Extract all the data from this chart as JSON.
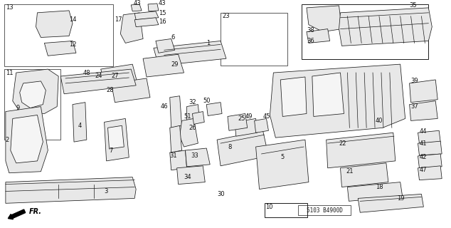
{
  "bg_color": "#ffffff",
  "diagram_code": "5103 B4900D",
  "fr_label": "FR.",
  "line_color": "#1a1a1a",
  "fill_light": "#e8e8e8",
  "fill_white": "#f5f5f5"
}
